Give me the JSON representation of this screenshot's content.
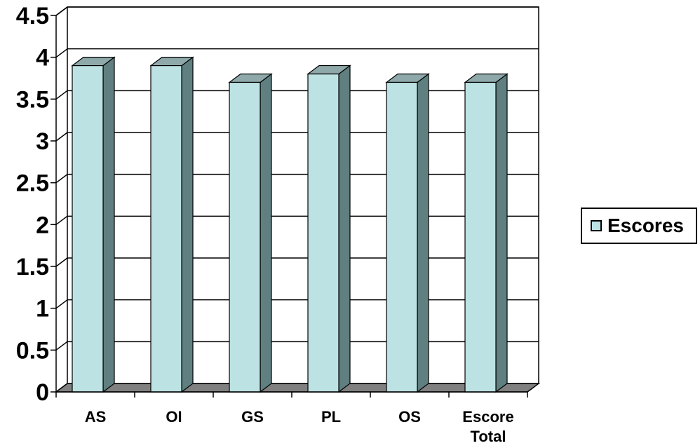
{
  "chart_data": {
    "type": "bar",
    "title": "",
    "xlabel": "",
    "ylabel": "",
    "categories": [
      "AS",
      "OI",
      "GS",
      "PL",
      "OS",
      "Escore Total"
    ],
    "category_lines": [
      [
        "AS"
      ],
      [
        "OI"
      ],
      [
        "GS"
      ],
      [
        "PL"
      ],
      [
        "OS"
      ],
      [
        "Escore",
        "Total"
      ]
    ],
    "series": [
      {
        "name": "Escores",
        "values": [
          3.9,
          3.9,
          3.7,
          3.8,
          3.7,
          3.7
        ]
      }
    ],
    "ylim": [
      0,
      4.5
    ],
    "yticks": [
      "0",
      "0.5",
      "1",
      "1.5",
      "2",
      "2.5",
      "3",
      "3.5",
      "4",
      "4.5"
    ],
    "grid": true,
    "legend_position": "right",
    "style": "3d-column",
    "colors": {
      "bar_front": "#bde2e3",
      "bar_side": "#5f7f80",
      "bar_top": "#8fa9aa",
      "floor": "#808080",
      "grid": "#000000"
    }
  }
}
